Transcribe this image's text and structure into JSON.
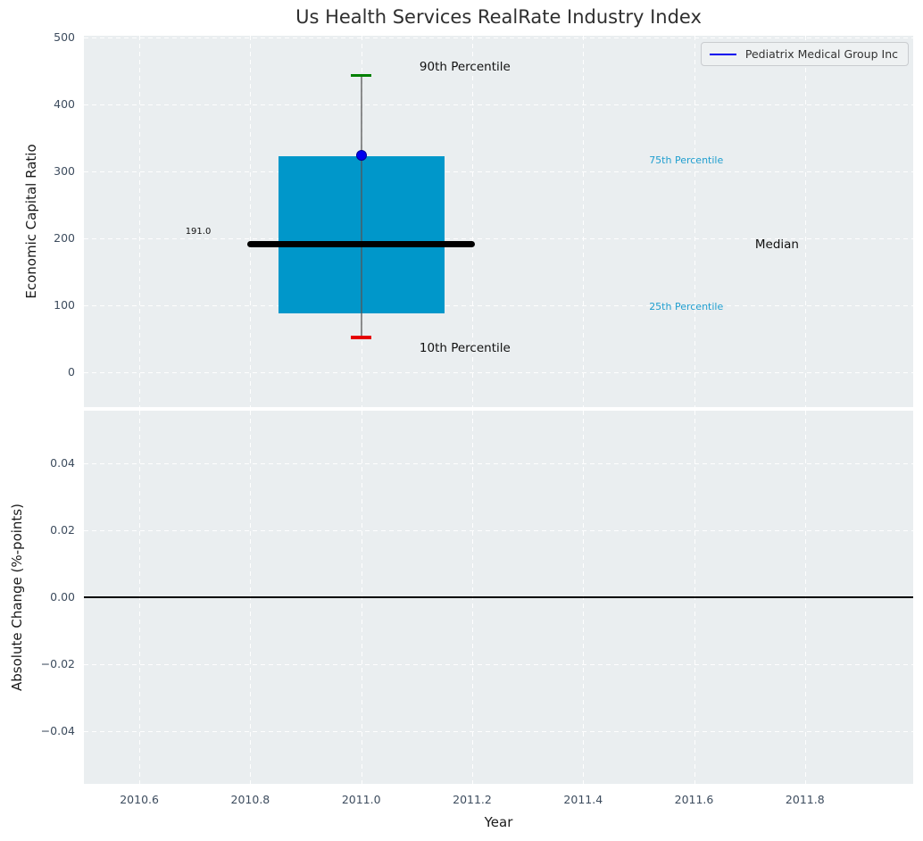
{
  "figure": {
    "title": "Us Health Services RealRate Industry Index",
    "background": "#ffffff",
    "panel_background": "#eaeef0",
    "grid_color": "#ffffff",
    "tick_color": "#3d4c5e",
    "title_color": "#2f2f2f"
  },
  "legend": {
    "label": "Pediatrix Medical Group Inc",
    "line_color": "#0000ee",
    "text_color": "#333333",
    "position": "upper right"
  },
  "x_axis": {
    "label": "Year",
    "xlim": [
      2010.5,
      2011.995
    ],
    "ticks": [
      2010.6,
      2010.8,
      2011.0,
      2011.2,
      2011.4,
      2011.6,
      2011.8
    ],
    "tick_labels": [
      "2010.6",
      "2010.8",
      "2011.0",
      "2011.2",
      "2011.4",
      "2011.6",
      "2011.8"
    ]
  },
  "chart_data": [
    {
      "type": "boxplot",
      "panel": "top",
      "title": "Us Health Services RealRate Industry Index",
      "ylabel": "Economic Capital Ratio",
      "xlabel": "Year",
      "ylim": [
        -52,
        502
      ],
      "yticks": [
        0,
        100,
        200,
        300,
        400,
        500
      ],
      "ytick_labels": [
        "0",
        "100",
        "200",
        "300",
        "400",
        "500"
      ],
      "grid": true,
      "box": {
        "x": 2011.0,
        "p90": 443,
        "p75": 322,
        "median": 191,
        "p25": 88,
        "p10": 52,
        "median_label": "191.0",
        "box_halfwidth": 0.15,
        "median_halfwidth": 0.205,
        "colors": {
          "box": "#0097ca",
          "median": "#000000",
          "whisker": "#555555",
          "cap_top": "#008000",
          "cap_bottom": "#e50000"
        }
      },
      "company_point": {
        "name": "Pediatrix Medical Group Inc",
        "x": 2011.0,
        "value": 323,
        "color": "#0000ee",
        "edge_color": "#000099"
      },
      "annotations": [
        {
          "text": "90th Percentile",
          "x": 2011.105,
          "y": 443,
          "dy": -18,
          "size": 13.5,
          "color": "#111111"
        },
        {
          "text": "10th Percentile",
          "x": 2011.105,
          "y": 52,
          "dy": 3,
          "size": 13.5,
          "color": "#111111"
        },
        {
          "text": "75th Percentile",
          "x": 2011.519,
          "y": 322,
          "dy": -2,
          "size": 11,
          "color": "#1f9ecf"
        },
        {
          "text": "25th Percentile",
          "x": 2011.519,
          "y": 88,
          "dy": -14,
          "size": 11,
          "color": "#1f9ecf"
        },
        {
          "text": "Median",
          "x": 2011.71,
          "y": 191,
          "dy": -8.5,
          "size": 13.5,
          "color": "#111111"
        },
        {
          "text": "191.0",
          "x": 2010.683,
          "y": 191,
          "dy": -20.5,
          "size": 10,
          "color": "#111111"
        }
      ]
    },
    {
      "type": "line",
      "panel": "bottom",
      "ylabel": "Absolute Change (%-points)",
      "ylim": [
        -0.0556,
        0.0556
      ],
      "yticks": [
        0.04,
        0.02,
        0.0,
        -0.02,
        -0.04
      ],
      "ytick_labels": [
        "0.04",
        "0.02",
        "0.00",
        "−0.02",
        "−0.04"
      ],
      "grid": true,
      "zero_line": {
        "y": 0.0,
        "color": "#000000"
      },
      "series": []
    }
  ]
}
